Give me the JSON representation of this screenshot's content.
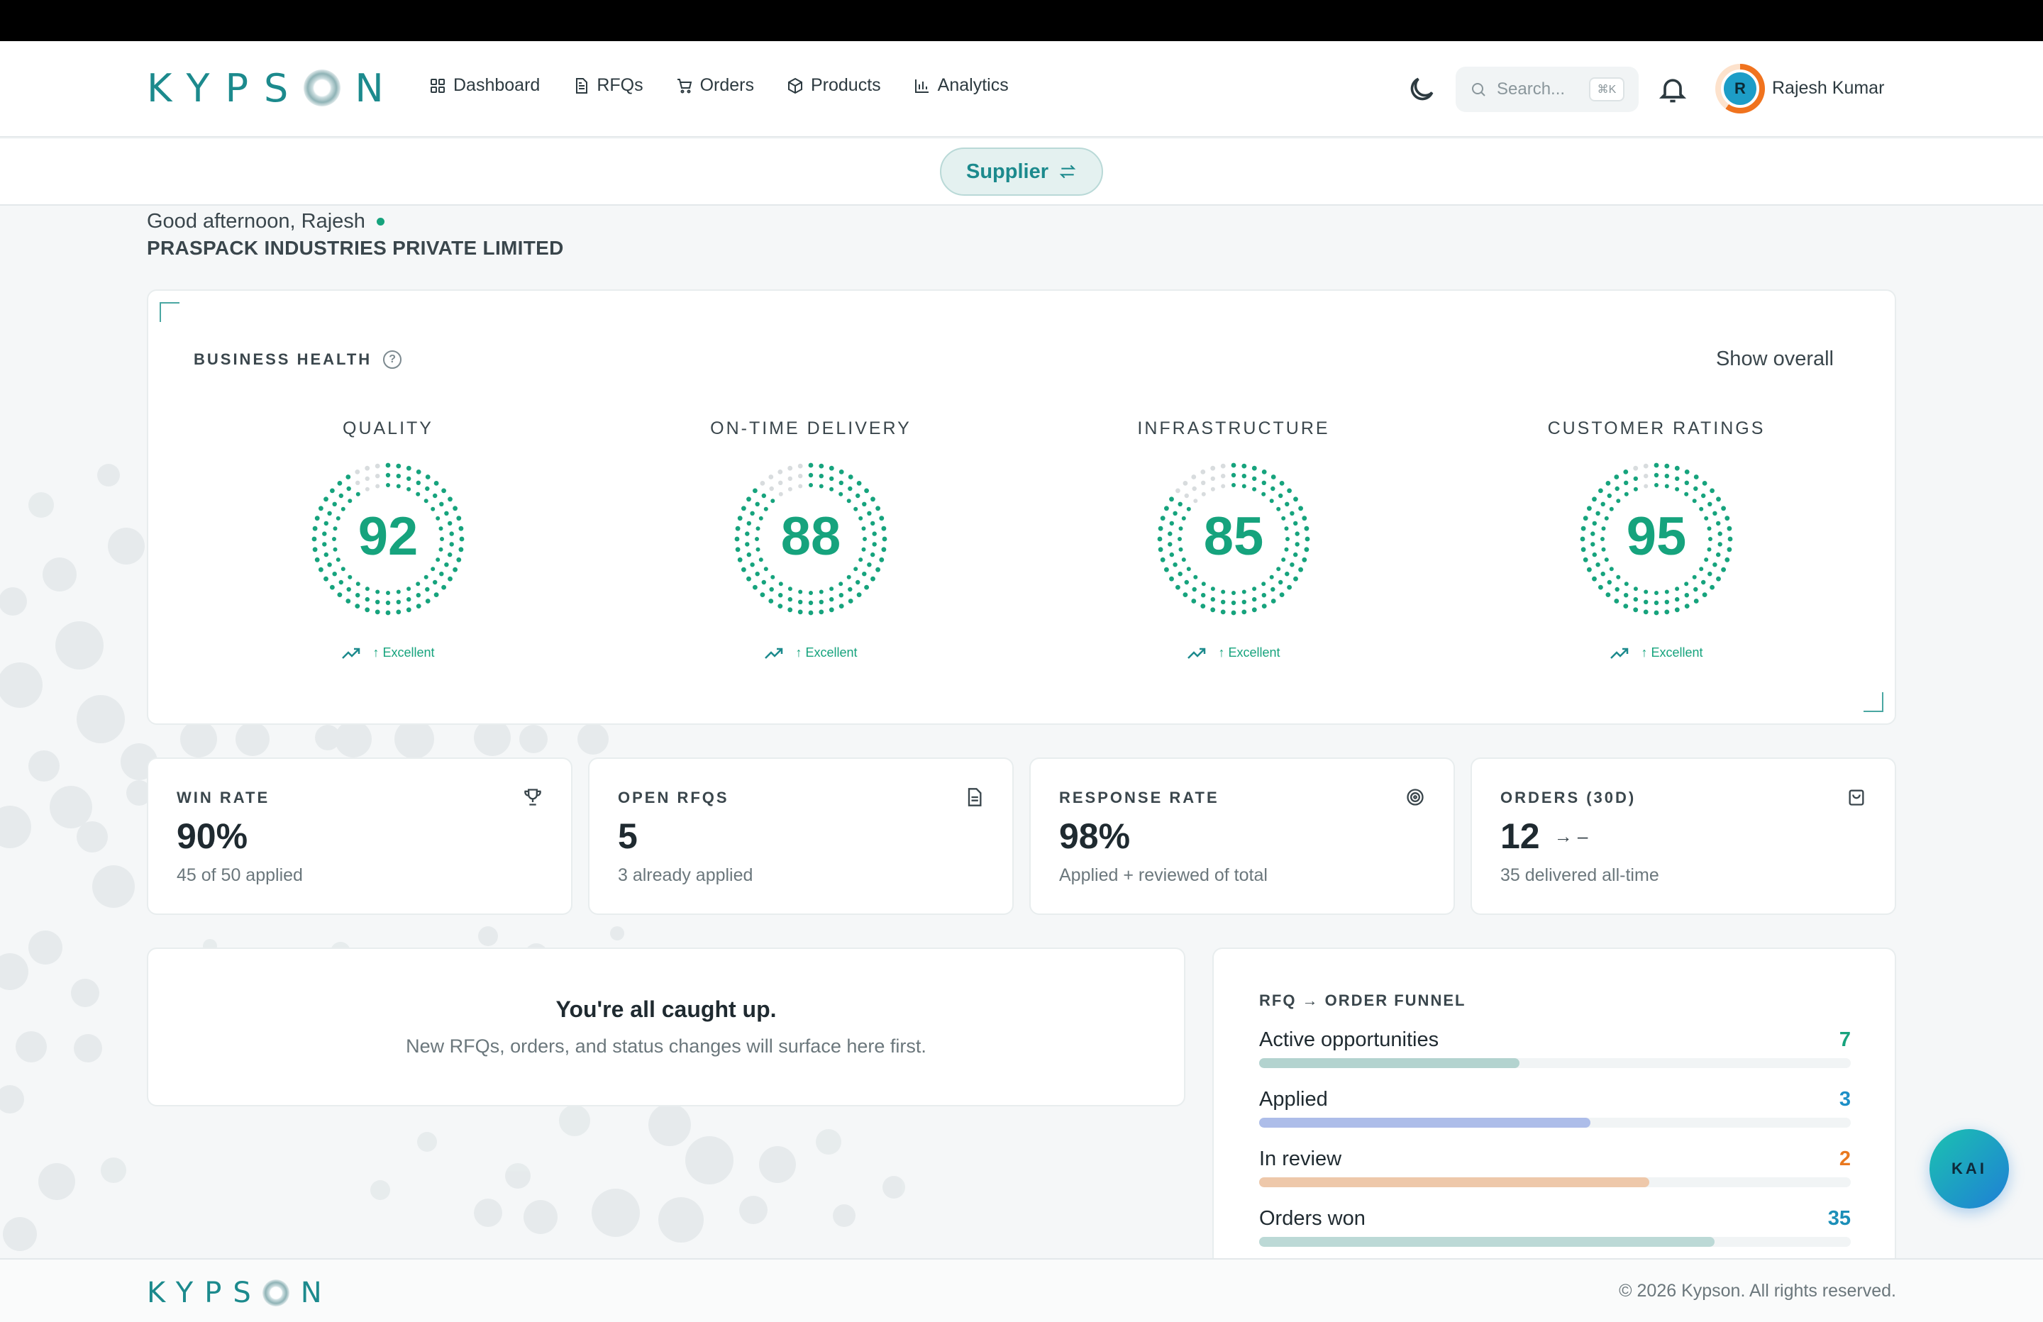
{
  "brand": {
    "name_start": "KYPS",
    "name_end": "N"
  },
  "nav": [
    {
      "label": "Dashboard",
      "icon": "dashboard-icon"
    },
    {
      "label": "RFQs",
      "icon": "document-icon"
    },
    {
      "label": "Orders",
      "icon": "cart-icon"
    },
    {
      "label": "Products",
      "icon": "box-icon"
    },
    {
      "label": "Analytics",
      "icon": "bar-chart-icon"
    }
  ],
  "search": {
    "placeholder": "Search...",
    "shortcut": "⌘K"
  },
  "user": {
    "initial": "R",
    "name": "Rajesh Kumar"
  },
  "role": {
    "label": "Supplier"
  },
  "greeting": {
    "text": "Good afternoon, Rajesh",
    "company": "PRASPACK INDUSTRIES PRIVATE LIMITED"
  },
  "business_health": {
    "title": "BUSINESS HEALTH",
    "help": "?",
    "show_overall": "Show overall",
    "metrics": [
      {
        "label": "QUALITY",
        "score": 92,
        "trend": "↑ Excellent"
      },
      {
        "label": "ON-TIME DELIVERY",
        "score": 88,
        "trend": "↑ Excellent"
      },
      {
        "label": "INFRASTRUCTURE",
        "score": 85,
        "trend": "↑ Excellent"
      },
      {
        "label": "CUSTOMER RATINGS",
        "score": 95,
        "trend": "↑ Excellent"
      }
    ]
  },
  "stats": [
    {
      "title": "WIN RATE",
      "value": "90%",
      "sub": "45 of 50 applied",
      "icon": "trophy-icon",
      "extra": ""
    },
    {
      "title": "OPEN RFQS",
      "value": "5",
      "sub": "3 already applied",
      "icon": "document-icon",
      "extra": ""
    },
    {
      "title": "RESPONSE RATE",
      "value": "98%",
      "sub": "Applied + reviewed of total",
      "icon": "target-icon",
      "extra": ""
    },
    {
      "title": "ORDERS (30D)",
      "value": "12",
      "sub": "35 delivered all-time",
      "icon": "bag-icon",
      "extra": "→ –"
    }
  ],
  "caught_up": {
    "title": "You're all caught up.",
    "text": "New RFQs, orders, and status changes will surface here first."
  },
  "funnel": {
    "title": "RFQ → ORDER FUNNEL",
    "rows": [
      {
        "label": "Active opportunities",
        "value": "7",
        "fraction": 0.44,
        "bar_color": "#b3d3cf",
        "num_color": "#16a37d"
      },
      {
        "label": "Applied",
        "value": "3",
        "fraction": 0.56,
        "bar_color": "#adbde9",
        "num_color": "#1d8fc7"
      },
      {
        "label": "In review",
        "value": "2",
        "fraction": 0.66,
        "bar_color": "#eec8aa",
        "num_color": "#e9781f"
      },
      {
        "label": "Orders won",
        "value": "35",
        "fraction": 0.77,
        "bar_color": "#bcd9d6",
        "num_color": "#1c8fb8"
      }
    ]
  },
  "footer": {
    "copyright": "© 2026 Kypson. All rights reserved."
  },
  "assistant": {
    "label": "KAI"
  },
  "colors": {
    "accent": "#1c8a8d",
    "ring": "#16a37d",
    "ring_empty": "#d8dcde"
  }
}
